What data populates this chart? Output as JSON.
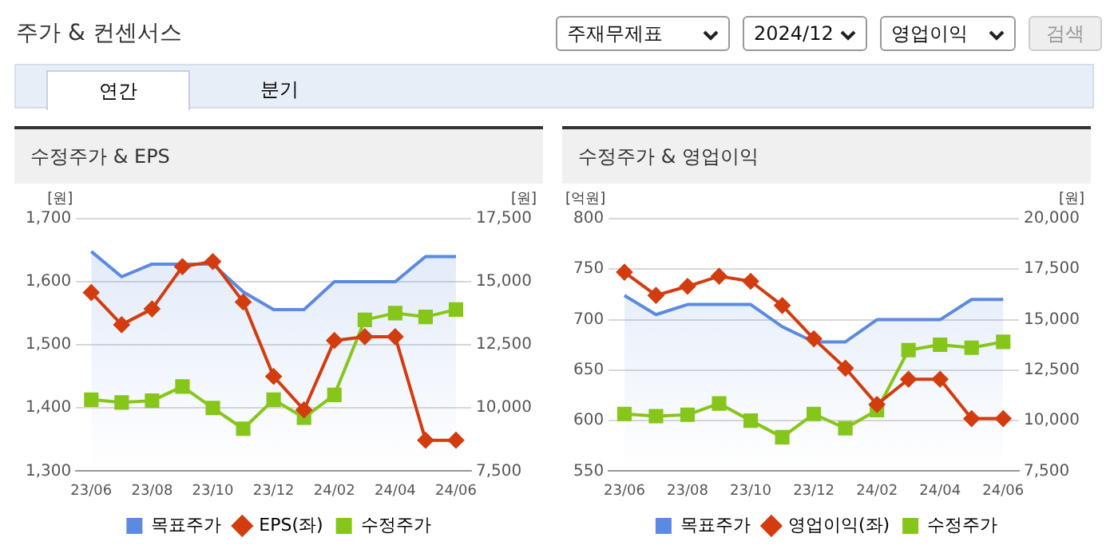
{
  "chart_data": [
    {
      "type": "other",
      "title": "주가 & 컨센서스",
      "annotations": [
        "주재무제표",
        "2024/12",
        "영업이익",
        "검색",
        "연간",
        "분기"
      ]
    },
    {
      "type": "line",
      "title": "수정주가 & EPS",
      "categories": [
        "23/06",
        null,
        "23/08",
        null,
        "23/10",
        null,
        "23/12",
        null,
        "24/02",
        null,
        "24/04",
        null,
        "24/06"
      ],
      "ylabel": "[원]",
      "y2label": "[원]",
      "ylim": [
        1300,
        1700
      ],
      "yticks": [
        {
          "value": 1300,
          "label": "1,300"
        },
        {
          "value": 1400,
          "label": "1,400"
        },
        {
          "value": 1500,
          "label": "1,500"
        },
        {
          "value": 1600,
          "label": "1,600"
        },
        {
          "value": 1700,
          "label": "1,700"
        }
      ],
      "y2lim": [
        7500,
        17500
      ],
      "y2ticks": [
        {
          "value": 7500,
          "label": "7,500"
        },
        {
          "value": 10000,
          "label": "10,000"
        },
        {
          "value": 12500,
          "label": "12,500"
        },
        {
          "value": 15000,
          "label": "15,000"
        },
        {
          "value": 17500,
          "label": "17,500"
        }
      ],
      "grid": "y",
      "legend": "bottom",
      "series": [
        {
          "name": "목표주가",
          "type": "area",
          "axis": "y2",
          "color": "#5b8ae0",
          "marker": "none",
          "values": [
            16200,
            15200,
            15700,
            15700,
            15700,
            14600,
            13900,
            13900,
            15000,
            15000,
            15000,
            16000,
            16000
          ]
        },
        {
          "name": "EPS(좌)",
          "type": "line",
          "color": "#d23c0f",
          "marker": "diamond",
          "values": [
            1583,
            1532,
            1557,
            1624,
            1632,
            1568,
            1450,
            1397,
            1507,
            1513,
            1513,
            1349,
            1349
          ]
        },
        {
          "name": "수정주가",
          "type": "line",
          "axis": "y2",
          "color": "#86c61a",
          "marker": "square",
          "values": [
            10330,
            10220,
            10290,
            10850,
            10000,
            9180,
            10330,
            9620,
            10520,
            13490,
            13760,
            13610,
            13900
          ]
        }
      ]
    },
    {
      "type": "line",
      "title": "수정주가 & 영업이익",
      "categories": [
        "23/06",
        null,
        "23/08",
        null,
        "23/10",
        null,
        "23/12",
        null,
        "24/02",
        null,
        "24/04",
        null,
        "24/06"
      ],
      "ylabel": "[억원]",
      "y2label": "[원]",
      "ylim": [
        550,
        800
      ],
      "yticks": [
        550,
        600,
        650,
        700,
        750,
        800
      ],
      "y2lim": [
        7500,
        20000
      ],
      "y2ticks": [
        {
          "value": 7500,
          "label": "7,500"
        },
        {
          "value": 10000,
          "label": "10,000"
        },
        {
          "value": 12500,
          "label": "12,500"
        },
        {
          "value": 15000,
          "label": "15,000"
        },
        {
          "value": 17500,
          "label": "17,500"
        },
        {
          "value": 20000,
          "label": "20,000"
        }
      ],
      "grid": "y",
      "legend": "bottom",
      "series": [
        {
          "name": "목표주가",
          "type": "area",
          "axis": "y2",
          "color": "#5b8ae0",
          "marker": "none",
          "values": [
            16200,
            15250,
            15750,
            15750,
            15750,
            14650,
            13900,
            13900,
            15000,
            15000,
            15000,
            16000,
            16000
          ]
        },
        {
          "name": "영업이익(좌)",
          "type": "line",
          "color": "#d23c0f",
          "marker": "diamond",
          "values": [
            747,
            724,
            733,
            743,
            738,
            714,
            681,
            652,
            616,
            641,
            641,
            602,
            602
          ]
        },
        {
          "name": "수정주가",
          "type": "line",
          "axis": "y2",
          "color": "#86c61a",
          "marker": "square",
          "values": [
            10330,
            10220,
            10290,
            10850,
            10000,
            9180,
            10330,
            9620,
            10520,
            13490,
            13760,
            13610,
            13900
          ]
        }
      ]
    }
  ]
}
